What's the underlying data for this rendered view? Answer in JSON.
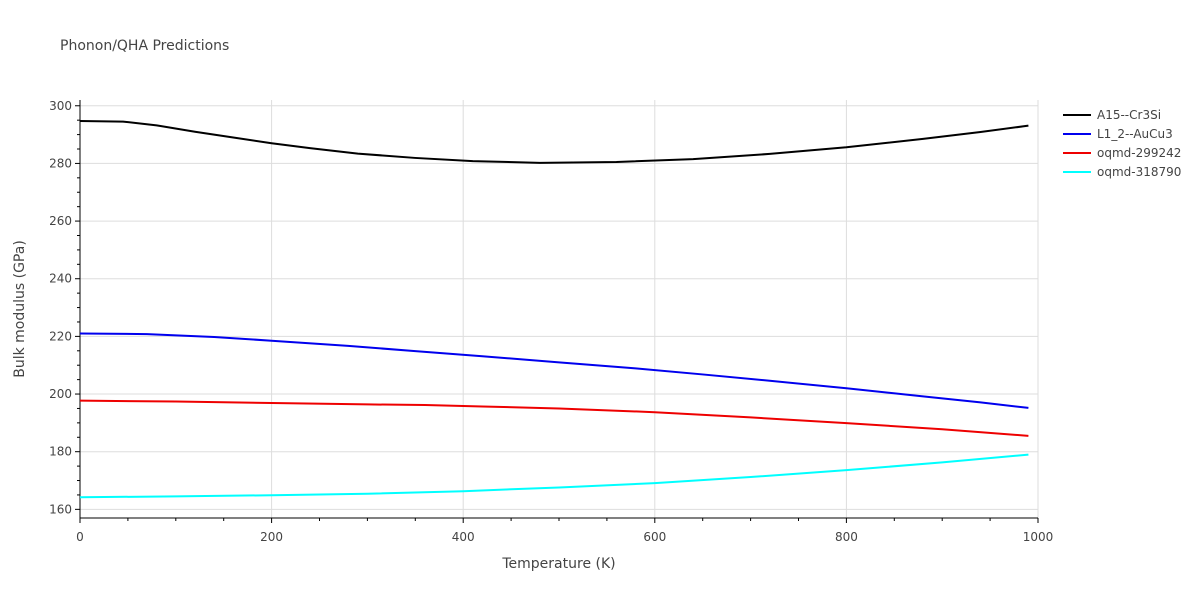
{
  "chart_data": {
    "type": "line",
    "title": "Phonon/QHA Predictions",
    "xlabel": "Temperature (K)",
    "ylabel": "Bulk modulus (GPa)",
    "xlim": [
      0,
      1000
    ],
    "ylim": [
      157,
      302
    ],
    "xticks": [
      0,
      200,
      400,
      600,
      800,
      1000
    ],
    "yticks": [
      160,
      180,
      200,
      220,
      240,
      260,
      280,
      300
    ],
    "grid": true,
    "legend_position": "top-right",
    "series": [
      {
        "name": "A15--Cr3Si",
        "color": "#000000",
        "x": [
          0,
          45,
          80,
          120,
          160,
          200,
          240,
          290,
          350,
          410,
          480,
          560,
          640,
          720,
          800,
          880,
          940,
          990
        ],
        "y": [
          294.7,
          294.5,
          293.2,
          291.0,
          289.0,
          287.0,
          285.3,
          283.4,
          281.9,
          280.8,
          280.2,
          280.5,
          281.5,
          283.3,
          285.6,
          288.5,
          290.9,
          293.1
        ]
      },
      {
        "name": "L1_2--AuCu3",
        "color": "#0000ee",
        "x": [
          0,
          70,
          140,
          200,
          280,
          350,
          420,
          500,
          580,
          650,
          720,
          800,
          880,
          940,
          990
        ],
        "y": [
          221.0,
          220.8,
          219.8,
          218.5,
          216.7,
          214.9,
          213.1,
          211.0,
          208.9,
          206.8,
          204.6,
          202.0,
          199.2,
          197.1,
          195.2
        ]
      },
      {
        "name": "oqmd-299242",
        "color": "#ee0000",
        "x": [
          0,
          100,
          200,
          300,
          360,
          420,
          500,
          600,
          700,
          800,
          900,
          990
        ],
        "y": [
          197.7,
          197.4,
          196.9,
          196.4,
          196.2,
          195.7,
          195.0,
          193.7,
          191.9,
          189.9,
          187.8,
          185.5
        ]
      },
      {
        "name": "oqmd-318790",
        "color": "#00ffff",
        "x": [
          0,
          100,
          200,
          300,
          400,
          500,
          600,
          700,
          800,
          900,
          990
        ],
        "y": [
          164.2,
          164.5,
          164.9,
          165.4,
          166.3,
          167.6,
          169.1,
          171.2,
          173.6,
          176.3,
          179.0
        ]
      }
    ]
  }
}
